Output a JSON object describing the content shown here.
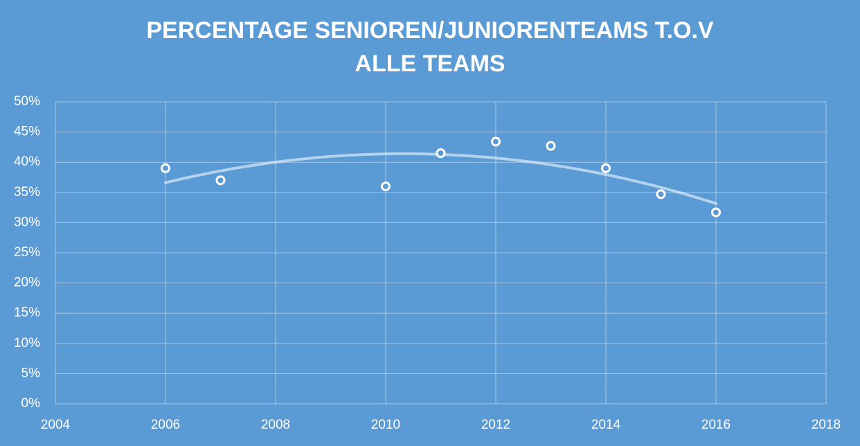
{
  "chart_data": {
    "type": "scatter",
    "title": [
      "PERCENTAGE SENIOREN/JUNIORENTEAMS T.O.V",
      "ALLE TEAMS"
    ],
    "x": [
      2006,
      2007,
      2010,
      2011,
      2012,
      2013,
      2014,
      2015,
      2016
    ],
    "series": [
      {
        "name": "Percentage",
        "color": "#ffffff",
        "values": [
          39,
          37,
          36,
          41.5,
          43.4,
          42.7,
          39,
          34.7,
          31.7
        ]
      }
    ],
    "xlim": [
      2004,
      2018
    ],
    "xticks": [
      2004,
      2006,
      2008,
      2010,
      2012,
      2014,
      2016,
      2018
    ],
    "ylim": [
      0,
      50
    ],
    "yticks": [
      {
        "value": 0,
        "label": "0%"
      },
      {
        "value": 5,
        "label": "5%"
      },
      {
        "value": 10,
        "label": "10%"
      },
      {
        "value": 15,
        "label": "15%"
      },
      {
        "value": 20,
        "label": "20%"
      },
      {
        "value": 25,
        "label": "25%"
      },
      {
        "value": 30,
        "label": "30%"
      },
      {
        "value": 35,
        "label": "35%"
      },
      {
        "value": 40,
        "label": "40%"
      },
      {
        "value": 45,
        "label": "45%"
      },
      {
        "value": 50,
        "label": "50%"
      }
    ],
    "grid": true,
    "trendline": true
  }
}
